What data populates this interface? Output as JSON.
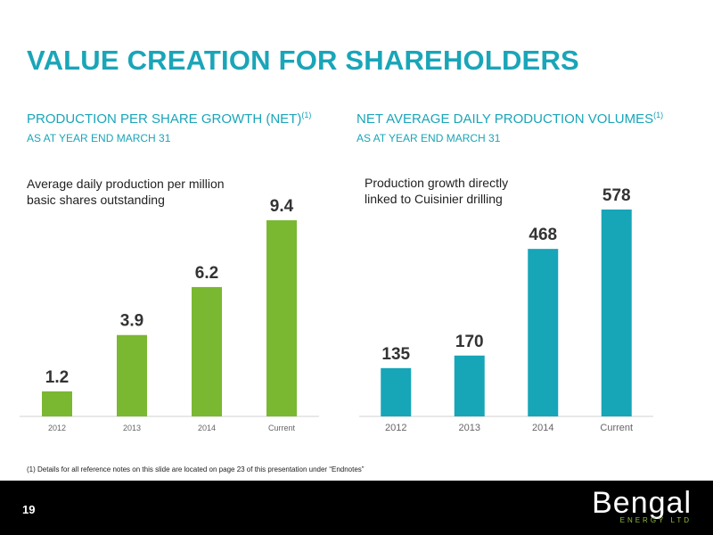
{
  "slide": {
    "title": "VALUE CREATION FOR SHAREHOLDERS",
    "footnote": "(1)  Details for all reference notes on this slide are located on page 23 of this presentation under “Endnotes”",
    "page_number": "19",
    "logo": {
      "word": "Bengal",
      "sub": "ENERGY LTD"
    }
  },
  "left": {
    "heading": "PRODUCTION PER SHARE GROWTH (NET)",
    "heading_sup": "(1)",
    "subheading": "AS AT YEAR END MARCH 31",
    "note_line1": "Average daily production per million",
    "note_line2": "basic shares outstanding"
  },
  "right": {
    "heading": "NET AVERAGE DAILY PRODUCTION VOLUMES",
    "heading_sup": "(1)",
    "subheading": "AS AT YEAR END MARCH 31",
    "note_line1": "Production growth directly",
    "note_line2": "linked to Cuisinier drilling"
  },
  "chart_data": [
    {
      "type": "bar",
      "categories": [
        "2012",
        "2013",
        "2014",
        "Current"
      ],
      "values": [
        1.2,
        3.9,
        6.2,
        9.4
      ],
      "labels": [
        "1.2",
        "3.9",
        "6.2",
        "9.4"
      ],
      "color": "#7ab831",
      "ylim": [
        0,
        10
      ],
      "grid": false
    },
    {
      "type": "bar",
      "categories": [
        "2012",
        "2013",
        "2014",
        "Current"
      ],
      "values": [
        135,
        170,
        468,
        578
      ],
      "labels": [
        "135",
        "170",
        "468",
        "578"
      ],
      "color": "#17a5b8",
      "ylim": [
        0,
        620
      ],
      "grid": false
    }
  ]
}
